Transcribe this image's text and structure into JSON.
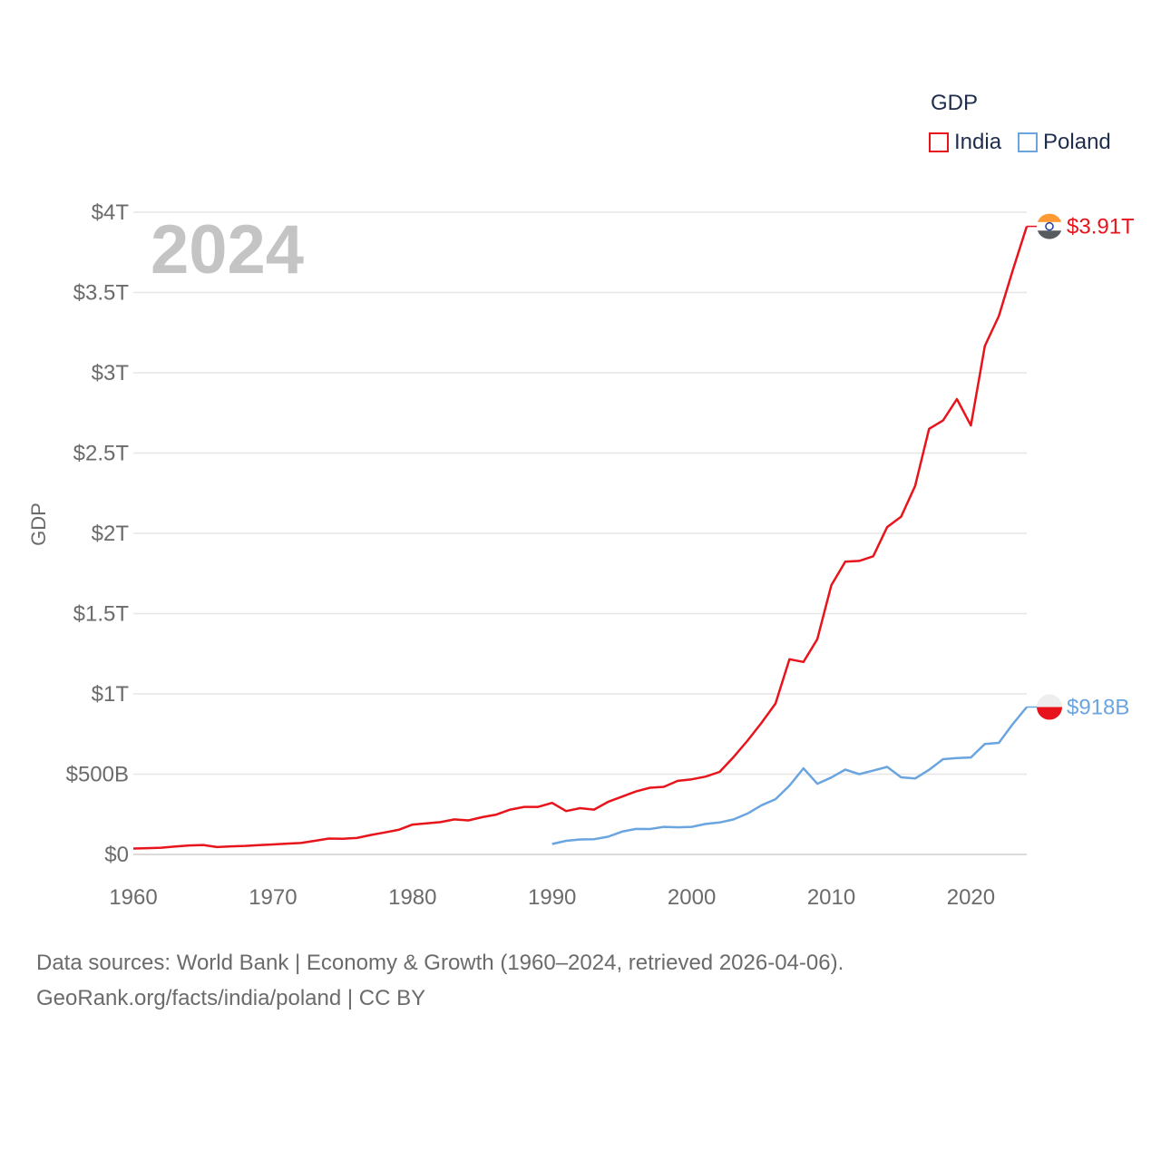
{
  "chart_data": {
    "type": "line",
    "title": "GDP",
    "ylabel": "GDP",
    "xlabel": "",
    "year_label": "2024",
    "xlim": [
      1960,
      2024
    ],
    "ylim": [
      0,
      4000
    ],
    "y_unit": "billions USD",
    "y_ticks": [
      {
        "value": 0,
        "label": "$0"
      },
      {
        "value": 500,
        "label": "$500B"
      },
      {
        "value": 1000,
        "label": "$1T"
      },
      {
        "value": 1500,
        "label": "$1.5T"
      },
      {
        "value": 2000,
        "label": "$2T"
      },
      {
        "value": 2500,
        "label": "$2.5T"
      },
      {
        "value": 3000,
        "label": "$3T"
      },
      {
        "value": 3500,
        "label": "$3.5T"
      },
      {
        "value": 4000,
        "label": "$4T"
      }
    ],
    "x_ticks": [
      {
        "value": 1960,
        "label": "1960"
      },
      {
        "value": 1970,
        "label": "1970"
      },
      {
        "value": 1980,
        "label": "1980"
      },
      {
        "value": 1990,
        "label": "1990"
      },
      {
        "value": 2000,
        "label": "2000"
      },
      {
        "value": 2010,
        "label": "2010"
      },
      {
        "value": 2020,
        "label": "2020"
      }
    ],
    "legend_title": "GDP",
    "series": [
      {
        "name": "India",
        "color": "#e8141c",
        "end_label": "$3.91T",
        "flag": "india-flag",
        "start_year": 1960,
        "values": [
          37,
          39,
          42,
          49,
          56,
          59,
          46,
          50,
          53,
          58,
          62,
          67,
          71,
          85,
          99,
          98,
          102,
          121,
          137,
          153,
          186,
          193,
          201,
          218,
          212,
          232,
          248,
          279,
          296,
          296,
          321,
          270,
          288,
          279,
          327,
          360,
          392,
          415,
          421,
          458,
          468,
          485,
          514,
          607,
          709,
          820,
          940,
          1216,
          1199,
          1341,
          1676,
          1823,
          1828,
          1857,
          2039,
          2104,
          2295,
          2651,
          2703,
          2836,
          2672,
          3167,
          3353,
          3639,
          3912
        ]
      },
      {
        "name": "Poland",
        "color": "#6aa5e0",
        "end_label": "$918B",
        "flag": "poland-flag",
        "start_year": 1990,
        "values": [
          65,
          85,
          93,
          95,
          110,
          142,
          159,
          158,
          172,
          169,
          172,
          190,
          199,
          218,
          255,
          306,
          344,
          429,
          536,
          440,
          479,
          528,
          500,
          522,
          545,
          480,
          473,
          527,
          593,
          600,
          604,
          688,
          695,
          812,
          918
        ]
      }
    ]
  },
  "footer": {
    "line1": "Data sources: World Bank | Economy & Growth (1960–2024, retrieved 2026-04-06).",
    "line2": "GeoRank.org/facts/india/poland | CC BY"
  },
  "colors": {
    "india": "#e8141c",
    "poland": "#6aa5e0",
    "axis_text": "#6b6b6b",
    "grid": "#e6e6e6",
    "legend_text": "#1f2d4d"
  }
}
